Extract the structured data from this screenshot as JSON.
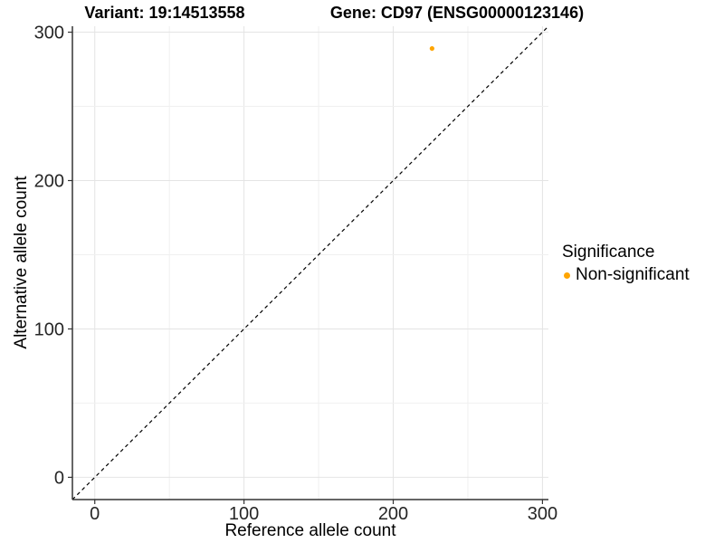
{
  "title": {
    "variant": "Variant: 19:14513558",
    "gene": "Gene: CD97 (ENSG00000123146)"
  },
  "axes": {
    "x_label": "Reference allele count",
    "y_label": "Alternative allele count"
  },
  "legend": {
    "title": "Significance",
    "items": [
      {
        "label": "Non-significant",
        "color": "#FFA500"
      }
    ]
  },
  "chart_data": {
    "type": "scatter",
    "title": "Variant: 19:14513558   Gene: CD97 (ENSG00000123146)",
    "xlabel": "Reference allele count",
    "ylabel": "Alternative allele count",
    "xlim": [
      -15,
      304
    ],
    "ylim": [
      -15,
      304
    ],
    "x_ticks": [
      0,
      100,
      200,
      300
    ],
    "y_ticks": [
      0,
      100,
      200,
      300
    ],
    "minor_tick_step": 50,
    "grid": true,
    "legend_position": "right",
    "series": [
      {
        "name": "Non-significant",
        "color": "#FFA500",
        "points": [
          {
            "x": 226,
            "y": 289
          }
        ]
      }
    ],
    "reference_line": {
      "kind": "identity",
      "slope": 1,
      "intercept": 0,
      "style": "dashed",
      "color": "#000000"
    },
    "style": {
      "grid_major_color": "#E4E4E4",
      "grid_minor_color": "#F0F0F0",
      "axis_line_color": "#333333",
      "tick_label_color": "#262626",
      "point_color": "#FFA500"
    }
  }
}
